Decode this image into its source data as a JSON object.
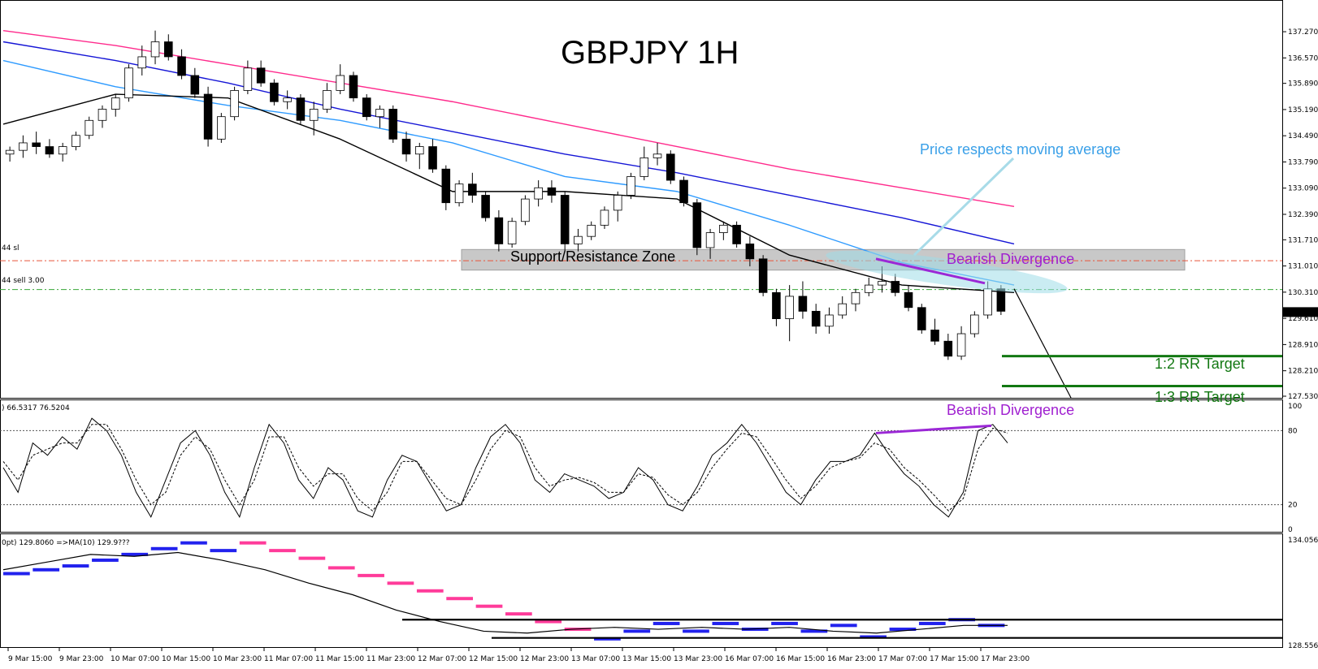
{
  "chart_data": [
    {
      "panel": "price",
      "type": "candlestick",
      "title": "GBPJPY 1H",
      "ylim": [
        127.53,
        137.64
      ],
      "y_ticks": [
        "137.270",
        "136.570",
        "135.890",
        "135.190",
        "134.490",
        "133.790",
        "133.090",
        "132.390",
        "131.710",
        "131.010",
        "130.310",
        "129.610",
        "128.910",
        "128.210",
        "127.530"
      ],
      "current_price": "129.778",
      "grid": false,
      "candles": [
        [
          134.0,
          134.2,
          133.8,
          134.1
        ],
        [
          134.1,
          134.5,
          133.9,
          134.3
        ],
        [
          134.3,
          134.6,
          134.0,
          134.2
        ],
        [
          134.2,
          134.4,
          133.9,
          134.0
        ],
        [
          134.0,
          134.3,
          133.8,
          134.2
        ],
        [
          134.2,
          134.6,
          134.1,
          134.5
        ],
        [
          134.5,
          135.0,
          134.4,
          134.9
        ],
        [
          134.9,
          135.3,
          134.7,
          135.2
        ],
        [
          135.2,
          135.6,
          135.0,
          135.5
        ],
        [
          135.5,
          136.4,
          135.4,
          136.3
        ],
        [
          136.3,
          136.9,
          136.1,
          136.6
        ],
        [
          136.6,
          137.3,
          136.4,
          137.0
        ],
        [
          137.0,
          137.2,
          136.5,
          136.6
        ],
        [
          136.6,
          136.8,
          136.0,
          136.1
        ],
        [
          136.1,
          136.3,
          135.5,
          135.6
        ],
        [
          135.6,
          135.8,
          134.2,
          134.4
        ],
        [
          134.4,
          135.1,
          134.3,
          135.0
        ],
        [
          135.0,
          135.8,
          134.9,
          135.7
        ],
        [
          135.7,
          136.5,
          135.6,
          136.3
        ],
        [
          136.3,
          136.5,
          135.8,
          135.9
        ],
        [
          135.9,
          136.0,
          135.3,
          135.4
        ],
        [
          135.4,
          135.7,
          135.2,
          135.5
        ],
        [
          135.5,
          135.6,
          134.8,
          134.9
        ],
        [
          134.9,
          135.4,
          134.5,
          135.2
        ],
        [
          135.2,
          135.9,
          135.1,
          135.7
        ],
        [
          135.7,
          136.4,
          135.6,
          136.1
        ],
        [
          136.1,
          136.2,
          135.4,
          135.5
        ],
        [
          135.5,
          135.6,
          134.9,
          135.0
        ],
        [
          135.0,
          135.3,
          134.7,
          135.2
        ],
        [
          135.2,
          135.3,
          134.3,
          134.4
        ],
        [
          134.4,
          134.6,
          133.8,
          134.0
        ],
        [
          134.0,
          134.3,
          133.6,
          134.2
        ],
        [
          134.2,
          134.4,
          133.5,
          133.6
        ],
        [
          133.6,
          133.7,
          132.5,
          132.7
        ],
        [
          132.7,
          133.3,
          132.6,
          133.2
        ],
        [
          133.2,
          133.5,
          132.7,
          132.9
        ],
        [
          132.9,
          133.0,
          132.2,
          132.3
        ],
        [
          132.3,
          132.5,
          131.4,
          131.6
        ],
        [
          131.6,
          132.3,
          131.5,
          132.2
        ],
        [
          132.2,
          132.9,
          132.1,
          132.8
        ],
        [
          132.8,
          133.3,
          132.6,
          133.1
        ],
        [
          133.1,
          133.3,
          132.7,
          132.9
        ],
        [
          132.9,
          133.0,
          131.4,
          131.6
        ],
        [
          131.6,
          132.0,
          131.4,
          131.8
        ],
        [
          131.8,
          132.2,
          131.7,
          132.1
        ],
        [
          132.1,
          132.6,
          132.0,
          132.5
        ],
        [
          132.5,
          133.0,
          132.2,
          132.9
        ],
        [
          132.9,
          133.5,
          132.8,
          133.4
        ],
        [
          133.4,
          134.2,
          133.3,
          133.9
        ],
        [
          133.9,
          134.3,
          133.7,
          134.0
        ],
        [
          134.0,
          134.1,
          133.2,
          133.3
        ],
        [
          133.3,
          133.4,
          132.6,
          132.7
        ],
        [
          132.7,
          132.8,
          131.3,
          131.5
        ],
        [
          131.5,
          132.0,
          131.2,
          131.9
        ],
        [
          131.9,
          132.2,
          131.7,
          132.1
        ],
        [
          132.1,
          132.2,
          131.5,
          131.6
        ],
        [
          131.6,
          131.8,
          131.0,
          131.2
        ],
        [
          131.2,
          131.3,
          130.2,
          130.3
        ],
        [
          130.3,
          130.4,
          129.4,
          129.6
        ],
        [
          129.6,
          130.5,
          129.0,
          130.2
        ],
        [
          130.2,
          130.6,
          129.6,
          129.8
        ],
        [
          129.8,
          130.0,
          129.2,
          129.4
        ],
        [
          129.4,
          129.9,
          129.2,
          129.7
        ],
        [
          129.7,
          130.2,
          129.6,
          130.0
        ],
        [
          130.0,
          130.4,
          129.8,
          130.3
        ],
        [
          130.3,
          130.7,
          130.2,
          130.5
        ],
        [
          130.5,
          131.0,
          130.3,
          130.6
        ],
        [
          130.6,
          130.8,
          130.2,
          130.3
        ],
        [
          130.3,
          130.5,
          129.8,
          129.9
        ],
        [
          129.9,
          130.0,
          129.2,
          129.3
        ],
        [
          129.3,
          129.6,
          128.9,
          129.0
        ],
        [
          129.0,
          129.2,
          128.5,
          128.6
        ],
        [
          128.6,
          129.4,
          128.5,
          129.2
        ],
        [
          129.2,
          129.8,
          129.1,
          129.7
        ],
        [
          129.7,
          130.6,
          129.6,
          130.4
        ],
        [
          130.4,
          130.5,
          129.7,
          129.8
        ]
      ],
      "moving_averages": [
        {
          "color": "#ff2a8c",
          "values": [
            137.3,
            136.9,
            136.4,
            135.9,
            135.4,
            134.8,
            134.2,
            133.6,
            133.1,
            132.6
          ]
        },
        {
          "color": "#1515d6",
          "values": [
            137.0,
            136.5,
            135.9,
            135.2,
            134.6,
            134.0,
            133.5,
            132.9,
            132.3,
            131.6
          ]
        },
        {
          "color": "#2f9bff",
          "values": [
            136.5,
            135.8,
            135.3,
            134.9,
            134.3,
            133.4,
            133.0,
            132.1,
            131.1,
            130.5
          ]
        },
        {
          "color": "#000000",
          "values": [
            134.8,
            135.6,
            135.5,
            134.4,
            133.0,
            133.0,
            132.8,
            131.3,
            130.5,
            130.3
          ]
        }
      ],
      "levels": [
        {
          "label": "44 sl",
          "value": 131.15,
          "color": "#e8543a",
          "style": "dashdot"
        },
        {
          "label": "44 sell 3.00",
          "value": 130.38,
          "color": "#38a838",
          "style": "dashdot"
        }
      ],
      "zone": {
        "label": "Support/Resistance Zone",
        "from": 130.9,
        "to": 131.45
      },
      "targets": [
        {
          "label": "1:2 RR Target",
          "value": 128.6
        },
        {
          "label": "1:3 RR Target",
          "value": 127.8
        }
      ],
      "annotations": [
        "Price respects moving average",
        "Bearish Divergence"
      ],
      "x_labels": [
        "9 Mar 15:00",
        "9 Mar 23:00",
        "10 Mar 07:00",
        "10 Mar 15:00",
        "10 Mar 23:00",
        "11 Mar 07:00",
        "11 Mar 15:00",
        "11 Mar 23:00",
        "12 Mar 07:00",
        "12 Mar 15:00",
        "12 Mar 23:00",
        "13 Mar 07:00",
        "13 Mar 15:00",
        "13 Mar 23:00",
        "16 Mar 07:00",
        "16 Mar 15:00",
        "16 Mar 23:00",
        "17 Mar 07:00",
        "17 Mar 15:00",
        "17 Mar 23:00"
      ]
    },
    {
      "panel": "stochastic",
      "type": "line",
      "header": ") 66.5317 76.5204",
      "ylim": [
        0,
        100
      ],
      "y_ticks": [
        "100",
        "80",
        "20",
        "0"
      ],
      "levels": [
        80,
        20
      ],
      "annotation": "Bearish Divergence",
      "series": [
        {
          "values": [
            50,
            30,
            70,
            60,
            75,
            65,
            90,
            80,
            60,
            30,
            10,
            40,
            70,
            80,
            60,
            30,
            10,
            50,
            85,
            70,
            40,
            25,
            50,
            40,
            15,
            10,
            40,
            60,
            55,
            35,
            15,
            20,
            50,
            75,
            85,
            70,
            40,
            30,
            45,
            40,
            35,
            25,
            30,
            50,
            40,
            20,
            15,
            35,
            60,
            70,
            85,
            70,
            50,
            30,
            20,
            40,
            55,
            55,
            60,
            78,
            60,
            45,
            35,
            20,
            10,
            30,
            80,
            85,
            70
          ]
        },
        {
          "dashed": true,
          "values": [
            55,
            40,
            60,
            65,
            70,
            70,
            85,
            85,
            65,
            40,
            20,
            30,
            60,
            75,
            65,
            40,
            20,
            40,
            75,
            75,
            50,
            35,
            45,
            45,
            25,
            15,
            30,
            55,
            55,
            40,
            25,
            20,
            40,
            65,
            80,
            75,
            50,
            35,
            40,
            42,
            38,
            30,
            30,
            45,
            42,
            28,
            20,
            30,
            50,
            65,
            78,
            75,
            58,
            40,
            25,
            35,
            50,
            55,
            58,
            70,
            65,
            50,
            40,
            28,
            15,
            25,
            65,
            82,
            78
          ]
        }
      ],
      "divergence": {
        "from": 78,
        "to": 84
      }
    },
    {
      "panel": "renko",
      "type": "line",
      "header": "0pt) 129.8060  =>MA(10) 129.9???",
      "ylim": [
        128.556,
        134.056
      ],
      "y_ticks": [
        "134.056",
        "128.556"
      ],
      "series": [
        {
          "name": "",
          "color": "#2222ee",
          "up": true,
          "values": [
            132.3,
            132.5,
            132.7,
            133.0,
            133.3,
            133.6,
            133.9,
            133.5
          ]
        },
        {
          "name": "",
          "color": "#ff3b9a",
          "up": false,
          "values": [
            133.9,
            133.5,
            133.1,
            132.6,
            132.2,
            131.8,
            131.4,
            131.0,
            130.6,
            130.2,
            129.8,
            129.4
          ]
        },
        {
          "name": "",
          "color": "#2222ee",
          "up": true,
          "values": [
            128.9,
            129.3,
            129.7,
            129.3,
            129.7,
            129.4,
            129.7,
            129.3,
            129.6,
            129.0,
            129.4,
            129.7,
            129.9,
            129.6
          ]
        }
      ],
      "ma_values": [
        132.5,
        132.9,
        133.3,
        133.2,
        133.4,
        133.0,
        132.5,
        131.8,
        131.2,
        130.4,
        129.8,
        129.3,
        129.2,
        129.4,
        129.5,
        129.4,
        129.5,
        129.4,
        129.5,
        129.3,
        129.2,
        129.4,
        129.6,
        129.6
      ],
      "levels": [
        129.9,
        128.95
      ]
    }
  ]
}
